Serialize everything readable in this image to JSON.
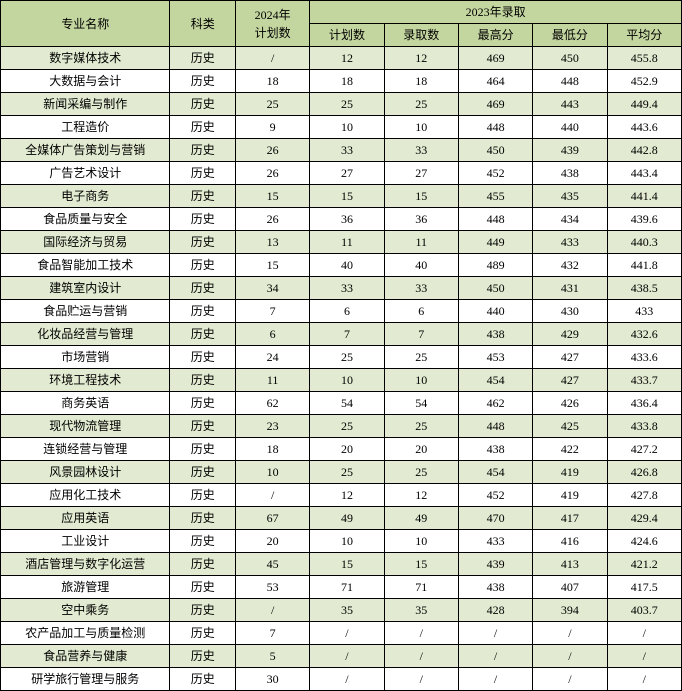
{
  "colors": {
    "headerBg": "#c4d6a0",
    "rowOdd": "#e2ebd1",
    "rowEven": "#ffffff",
    "border": "#000000"
  },
  "headers": {
    "major": "专业名称",
    "category": "科类",
    "plan2024": "2024年\n计划数",
    "admission2023": "2023年录取",
    "sub": {
      "plan": "计划数",
      "admitted": "录取数",
      "maxScore": "最高分",
      "minScore": "最低分",
      "avgScore": "平均分"
    }
  },
  "rows": [
    {
      "major": "数字媒体技术",
      "category": "历史",
      "plan2024": "/",
      "plan": "12",
      "admitted": "12",
      "max": "469",
      "min": "450",
      "avg": "455.8"
    },
    {
      "major": "大数据与会计",
      "category": "历史",
      "plan2024": "18",
      "plan": "18",
      "admitted": "18",
      "max": "464",
      "min": "448",
      "avg": "452.9"
    },
    {
      "major": "新闻采编与制作",
      "category": "历史",
      "plan2024": "25",
      "plan": "25",
      "admitted": "25",
      "max": "469",
      "min": "443",
      "avg": "449.4"
    },
    {
      "major": "工程造价",
      "category": "历史",
      "plan2024": "9",
      "plan": "10",
      "admitted": "10",
      "max": "448",
      "min": "440",
      "avg": "443.6"
    },
    {
      "major": "全媒体广告策划与营销",
      "category": "历史",
      "plan2024": "26",
      "plan": "33",
      "admitted": "33",
      "max": "450",
      "min": "439",
      "avg": "442.8"
    },
    {
      "major": "广告艺术设计",
      "category": "历史",
      "plan2024": "26",
      "plan": "27",
      "admitted": "27",
      "max": "452",
      "min": "438",
      "avg": "443.4"
    },
    {
      "major": "电子商务",
      "category": "历史",
      "plan2024": "15",
      "plan": "15",
      "admitted": "15",
      "max": "455",
      "min": "435",
      "avg": "441.4"
    },
    {
      "major": "食品质量与安全",
      "category": "历史",
      "plan2024": "26",
      "plan": "36",
      "admitted": "36",
      "max": "448",
      "min": "434",
      "avg": "439.6"
    },
    {
      "major": "国际经济与贸易",
      "category": "历史",
      "plan2024": "13",
      "plan": "11",
      "admitted": "11",
      "max": "449",
      "min": "433",
      "avg": "440.3"
    },
    {
      "major": "食品智能加工技术",
      "category": "历史",
      "plan2024": "15",
      "plan": "40",
      "admitted": "40",
      "max": "489",
      "min": "432",
      "avg": "441.8"
    },
    {
      "major": "建筑室内设计",
      "category": "历史",
      "plan2024": "34",
      "plan": "33",
      "admitted": "33",
      "max": "450",
      "min": "431",
      "avg": "438.5"
    },
    {
      "major": "食品贮运与营销",
      "category": "历史",
      "plan2024": "7",
      "plan": "6",
      "admitted": "6",
      "max": "440",
      "min": "430",
      "avg": "433"
    },
    {
      "major": "化妆品经营与管理",
      "category": "历史",
      "plan2024": "6",
      "plan": "7",
      "admitted": "7",
      "max": "438",
      "min": "429",
      "avg": "432.6"
    },
    {
      "major": "市场营销",
      "category": "历史",
      "plan2024": "24",
      "plan": "25",
      "admitted": "25",
      "max": "453",
      "min": "427",
      "avg": "433.6"
    },
    {
      "major": "环境工程技术",
      "category": "历史",
      "plan2024": "11",
      "plan": "10",
      "admitted": "10",
      "max": "454",
      "min": "427",
      "avg": "433.7"
    },
    {
      "major": "商务英语",
      "category": "历史",
      "plan2024": "62",
      "plan": "54",
      "admitted": "54",
      "max": "462",
      "min": "426",
      "avg": "436.4"
    },
    {
      "major": "现代物流管理",
      "category": "历史",
      "plan2024": "23",
      "plan": "25",
      "admitted": "25",
      "max": "448",
      "min": "425",
      "avg": "433.8"
    },
    {
      "major": "连锁经营与管理",
      "category": "历史",
      "plan2024": "18",
      "plan": "20",
      "admitted": "20",
      "max": "438",
      "min": "422",
      "avg": "427.2"
    },
    {
      "major": "风景园林设计",
      "category": "历史",
      "plan2024": "10",
      "plan": "25",
      "admitted": "25",
      "max": "454",
      "min": "419",
      "avg": "426.8"
    },
    {
      "major": "应用化工技术",
      "category": "历史",
      "plan2024": "/",
      "plan": "12",
      "admitted": "12",
      "max": "452",
      "min": "419",
      "avg": "427.8"
    },
    {
      "major": "应用英语",
      "category": "历史",
      "plan2024": "67",
      "plan": "49",
      "admitted": "49",
      "max": "470",
      "min": "417",
      "avg": "429.4"
    },
    {
      "major": "工业设计",
      "category": "历史",
      "plan2024": "20",
      "plan": "10",
      "admitted": "10",
      "max": "433",
      "min": "416",
      "avg": "424.6"
    },
    {
      "major": "酒店管理与数字化运营",
      "category": "历史",
      "plan2024": "45",
      "plan": "15",
      "admitted": "15",
      "max": "439",
      "min": "413",
      "avg": "421.2"
    },
    {
      "major": "旅游管理",
      "category": "历史",
      "plan2024": "53",
      "plan": "71",
      "admitted": "71",
      "max": "438",
      "min": "407",
      "avg": "417.5"
    },
    {
      "major": "空中乘务",
      "category": "历史",
      "plan2024": "/",
      "plan": "35",
      "admitted": "35",
      "max": "428",
      "min": "394",
      "avg": "403.7"
    },
    {
      "major": "农产品加工与质量检测",
      "category": "历史",
      "plan2024": "7",
      "plan": "/",
      "admitted": "/",
      "max": "/",
      "min": "/",
      "avg": "/"
    },
    {
      "major": "食品营养与健康",
      "category": "历史",
      "plan2024": "5",
      "plan": "/",
      "admitted": "/",
      "max": "/",
      "min": "/",
      "avg": "/"
    },
    {
      "major": "研学旅行管理与服务",
      "category": "历史",
      "plan2024": "30",
      "plan": "/",
      "admitted": "/",
      "max": "/",
      "min": "/",
      "avg": "/"
    }
  ]
}
